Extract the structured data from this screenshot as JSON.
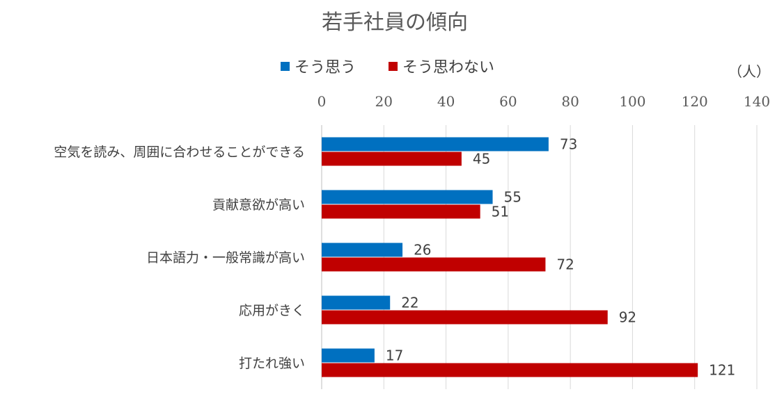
{
  "chart_data": {
    "type": "bar",
    "orientation": "horizontal",
    "title": "若手社員の傾向",
    "unit_label": "（人）",
    "categories": [
      "空気を読み、周囲に合わせることができる",
      "貢献意欲が高い",
      "日本語力・一般常識が高い",
      "応用がきく",
      "打たれ強い"
    ],
    "series": [
      {
        "name": "そう思う",
        "color": "#0070c0",
        "values": [
          73,
          55,
          26,
          22,
          17
        ]
      },
      {
        "name": "そう思わない",
        "color": "#c00000",
        "values": [
          45,
          51,
          72,
          92,
          121
        ]
      }
    ],
    "xlim": [
      0,
      140
    ],
    "xticks": [
      0,
      20,
      40,
      60,
      80,
      100,
      120,
      140
    ],
    "grid": true,
    "legend_position": "top",
    "axis_position": "top"
  }
}
